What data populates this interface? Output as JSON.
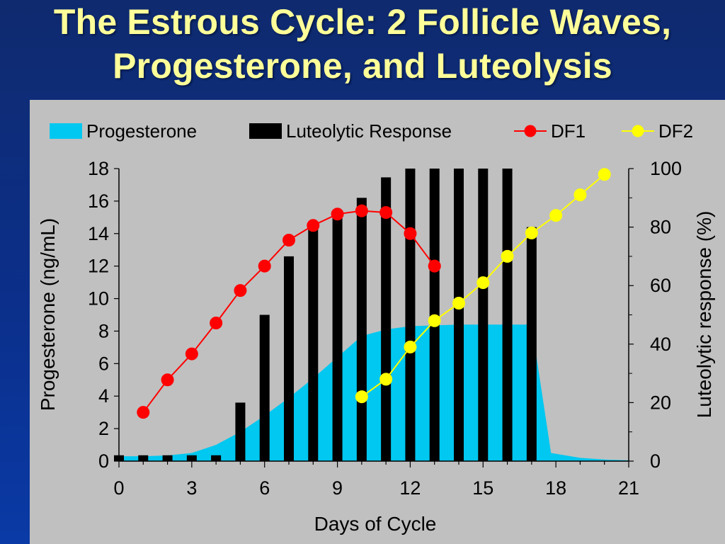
{
  "slide": {
    "title_line1": "The Estrous Cycle: 2 Follicle Waves,",
    "title_line2": "Progesterone, and Luteolysis"
  },
  "chart_data": {
    "type": "bar",
    "xlabel": "Days of Cycle",
    "ylabel_left": "Progesterone (ng/mL)",
    "ylabel_right": "Luteolytic response (%)",
    "x_ticks": [
      0,
      3,
      6,
      9,
      12,
      15,
      18,
      21
    ],
    "y_left_ticks": [
      0,
      2,
      4,
      6,
      8,
      10,
      12,
      14,
      16,
      18
    ],
    "y_right_ticks": [
      0,
      20,
      40,
      60,
      80,
      100
    ],
    "xlim": [
      0,
      21
    ],
    "ylim_left": [
      0,
      18
    ],
    "ylim_right": [
      0,
      100
    ],
    "legend_position": "top",
    "grid": false,
    "colors": {
      "progesterone": "#00c8f0",
      "luteolytic": "#000000",
      "df1": "#ff0000",
      "df2": "#ffff00"
    },
    "series": [
      {
        "name": "Progesterone",
        "kind": "area",
        "axis": "left",
        "x": [
          0,
          1,
          2,
          3,
          4,
          5,
          6,
          7,
          8,
          9,
          10,
          11,
          12,
          13,
          14,
          15,
          16,
          17,
          17.8,
          19,
          20,
          21
        ],
        "values": [
          0.3,
          0.3,
          0.35,
          0.5,
          1.0,
          1.8,
          2.8,
          3.9,
          5.1,
          6.4,
          7.7,
          8.1,
          8.3,
          8.35,
          8.4,
          8.4,
          8.4,
          8.4,
          0.5,
          0.2,
          0.1,
          0.05
        ]
      },
      {
        "name": "Luteolytic Response",
        "kind": "bar",
        "axis": "right",
        "x": [
          0,
          1,
          2,
          3,
          4,
          5,
          6,
          7,
          8,
          9,
          10,
          11,
          12,
          13,
          14,
          15,
          16,
          17
        ],
        "values": [
          2,
          2,
          2,
          2,
          2,
          20,
          50,
          70,
          80,
          85,
          90,
          97,
          100,
          100,
          100,
          100,
          100,
          80
        ]
      },
      {
        "name": "DF1",
        "kind": "line",
        "axis": "left",
        "x": [
          1,
          2,
          3,
          4,
          5,
          6,
          7,
          8,
          9,
          10,
          11,
          12,
          13
        ],
        "values": [
          3.0,
          5.0,
          6.6,
          8.5,
          10.5,
          12.0,
          13.6,
          14.5,
          15.2,
          15.4,
          15.3,
          14.0,
          12.0
        ]
      },
      {
        "name": "DF2",
        "kind": "line",
        "axis": "right",
        "x": [
          10,
          11,
          12,
          13,
          14,
          15,
          16,
          17,
          18,
          19,
          20
        ],
        "values": [
          22,
          28,
          39,
          48,
          54,
          61,
          70,
          78,
          84,
          91,
          98
        ]
      }
    ]
  }
}
